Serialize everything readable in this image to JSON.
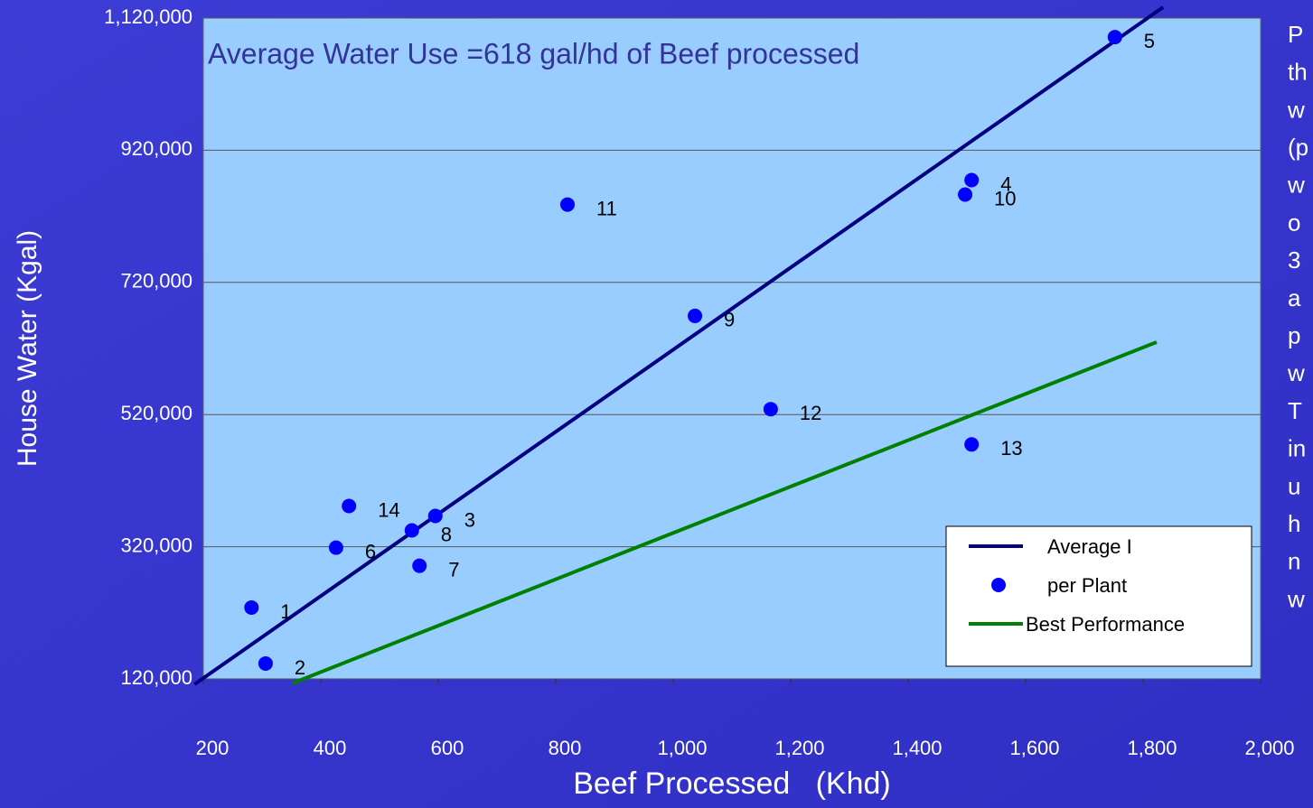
{
  "chart_data": {
    "type": "scatter",
    "annotation": "Average Water Use =618 gal/hd of Beef processed",
    "x_label": "Beef Processed   (Khd)",
    "y_label": "House Water (Kgal)",
    "xlim": [
      200,
      2000
    ],
    "ylim": [
      120000,
      1120000
    ],
    "xticks": [
      200,
      400,
      600,
      800,
      {
        "value": 1000,
        "label": "1,000"
      },
      {
        "value": 1200,
        "label": "1,200"
      },
      {
        "value": 1400,
        "label": "1,400"
      },
      {
        "value": 1600,
        "label": "1,600"
      },
      {
        "value": 1800,
        "label": "1,800"
      },
      {
        "value": 2000,
        "label": "2,000"
      }
    ],
    "yticks": [
      {
        "value": 120000,
        "label": "120,000"
      },
      {
        "value": 320000,
        "label": "320,000"
      },
      {
        "value": 520000,
        "label": "520,000"
      },
      {
        "value": 720000,
        "label": "720,000"
      },
      {
        "value": 920000,
        "label": "920,000"
      },
      {
        "value": 1120000,
        "label": "1,120,000"
      }
    ],
    "grid": true,
    "legend": "lower right",
    "series": [
      {
        "name": "Average I",
        "mode": "line",
        "color": "#000080",
        "x": [
          185,
          1834
        ],
        "values": [
          111800,
          1136400
        ]
      },
      {
        "name": "per Plant",
        "mode": "markers",
        "color": "#0000ff",
        "x": [
          282,
          306,
          595,
          1508,
          1752,
          426,
          568,
          555,
          1037,
          1497,
          820,
          1166,
          1508,
          448
        ],
        "values": [
          228000,
          143300,
          366600,
          874800,
          1091200,
          318600,
          291200,
          344700,
          669300,
          852900,
          837800,
          528200,
          474800,
          381600
        ],
        "labels": [
          "1",
          "2",
          "3",
          "4",
          "5",
          "6",
          "7",
          "8",
          "9",
          "10",
          "11",
          "12",
          "13",
          "14"
        ]
      },
      {
        "name": "Best Performance",
        "mode": "line",
        "color": "#008000",
        "x": [
          351,
          1823
        ],
        "values": [
          113200,
          629600
        ]
      }
    ],
    "side_text": [
      "P",
      "th",
      "w",
      "(p",
      "w",
      "o",
      "3",
      "a",
      "p",
      "w",
      "T",
      "in",
      "u",
      "h",
      "n",
      "w"
    ]
  }
}
